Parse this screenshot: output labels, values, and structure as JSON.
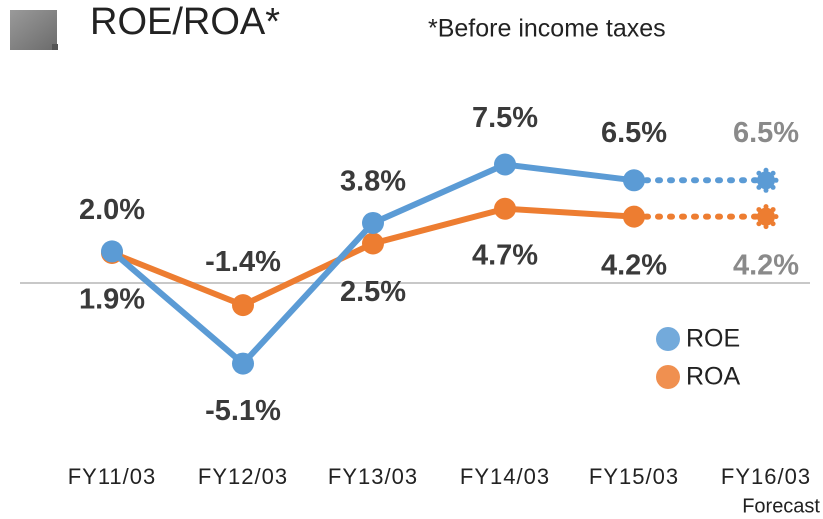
{
  "chart_data": {
    "type": "line",
    "title": "ROE/ROA*",
    "subtitle": "*Before income taxes",
    "categories": [
      "FY11/03",
      "FY12/03",
      "FY13/03",
      "FY14/03",
      "FY15/03",
      "FY16/03"
    ],
    "series": [
      {
        "name": "ROE",
        "color": "#5b9bd5",
        "values": [
          2.0,
          -5.1,
          3.8,
          7.5,
          6.5,
          6.5
        ],
        "value_labels": [
          "2.0%",
          "-5.1%",
          "3.8%",
          "7.5%",
          "6.5%",
          "6.5%"
        ]
      },
      {
        "name": "ROA",
        "color": "#ed7d31",
        "values": [
          1.9,
          -1.4,
          2.5,
          4.7,
          4.2,
          4.2
        ],
        "value_labels": [
          "1.9%",
          "-1.4%",
          "2.5%",
          "4.7%",
          "4.2%",
          "4.2%"
        ]
      }
    ],
    "ylim": [
      -8,
      10
    ],
    "annotations": [
      {
        "text": "Forecast",
        "category_index": 5
      }
    ],
    "legend": "right"
  }
}
